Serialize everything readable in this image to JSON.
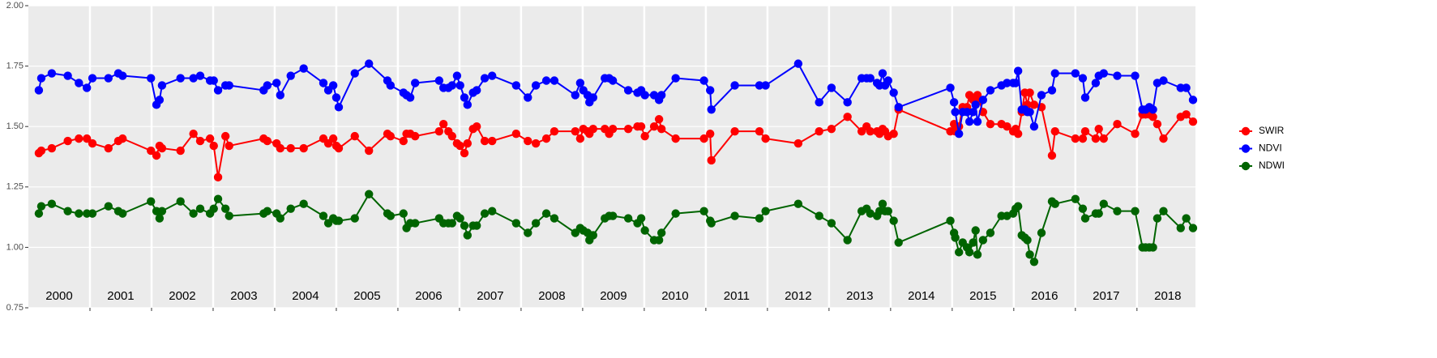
{
  "chart_data": {
    "type": "line",
    "x": [
      2000.17,
      2000.21,
      2000.38,
      2000.64,
      2000.82,
      2000.95,
      2001.04,
      2001.3,
      2001.46,
      2001.53,
      2001.99,
      2002.08,
      2002.13,
      2002.17,
      2002.47,
      2002.68,
      2002.79,
      2002.95,
      2003.01,
      2003.08,
      2003.2,
      2003.26,
      2003.82,
      2003.88,
      2004.03,
      2004.09,
      2004.26,
      2004.47,
      2004.79,
      2004.87,
      2004.95,
      2005.0,
      2005.04,
      2005.3,
      2005.53,
      2005.83,
      2005.88,
      2006.09,
      2006.14,
      2006.2,
      2006.28,
      2006.67,
      2006.74,
      2006.82,
      2006.88,
      2006.96,
      2007.01,
      2007.08,
      2007.13,
      2007.22,
      2007.28,
      2007.41,
      2007.53,
      2007.92,
      2008.11,
      2008.24,
      2008.41,
      2008.54,
      2008.88,
      2008.96,
      2009.01,
      2009.08,
      2009.11,
      2009.17,
      2009.36,
      2009.43,
      2009.49,
      2009.74,
      2009.89,
      2009.95,
      2010.01,
      2010.16,
      2010.24,
      2010.28,
      2010.51,
      2010.97,
      2011.07,
      2011.09,
      2011.47,
      2011.87,
      2011.97,
      2012.5,
      2012.84,
      2013.04,
      2013.3,
      2013.53,
      2013.61,
      2013.67,
      2013.78,
      2013.82,
      2013.87,
      2013.91,
      2013.96,
      2014.05,
      2014.13,
      2014.97,
      2015.03,
      2015.05,
      2015.11,
      2015.17,
      2015.24,
      2015.28,
      2015.34,
      2015.38,
      2015.41,
      2015.5,
      2015.62,
      2015.8,
      2015.89,
      2015.99,
      2016.03,
      2016.07,
      2016.13,
      2016.18,
      2016.22,
      2016.26,
      2016.33,
      2016.45,
      2016.62,
      2016.67,
      2017.0,
      2017.12,
      2017.16,
      2017.33,
      2017.38,
      2017.46,
      2017.68,
      2017.97,
      2018.09,
      2018.14,
      2018.2,
      2018.26,
      2018.33,
      2018.43,
      2018.71,
      2018.8,
      2018.91
    ],
    "series": [
      {
        "name": "SWIR",
        "color": "#ff0000",
        "values": [
          1.39,
          1.4,
          1.41,
          1.44,
          1.45,
          1.45,
          1.43,
          1.41,
          1.44,
          1.45,
          1.4,
          1.38,
          1.42,
          1.41,
          1.4,
          1.47,
          1.44,
          1.45,
          1.42,
          1.29,
          1.46,
          1.42,
          1.45,
          1.44,
          1.43,
          1.41,
          1.41,
          1.41,
          1.45,
          1.43,
          1.45,
          1.42,
          1.41,
          1.46,
          1.4,
          1.47,
          1.46,
          1.44,
          1.47,
          1.47,
          1.46,
          1.48,
          1.51,
          1.48,
          1.46,
          1.43,
          1.42,
          1.39,
          1.43,
          1.49,
          1.5,
          1.44,
          1.44,
          1.47,
          1.44,
          1.43,
          1.45,
          1.48,
          1.48,
          1.45,
          1.49,
          1.48,
          1.47,
          1.49,
          1.49,
          1.47,
          1.49,
          1.49,
          1.5,
          1.5,
          1.46,
          1.5,
          1.53,
          1.49,
          1.45,
          1.45,
          1.47,
          1.36,
          1.48,
          1.48,
          1.45,
          1.43,
          1.48,
          1.49,
          1.54,
          1.48,
          1.5,
          1.48,
          1.48,
          1.47,
          1.49,
          1.48,
          1.46,
          1.47,
          1.57,
          1.48,
          1.51,
          1.48,
          1.5,
          1.58,
          1.58,
          1.63,
          1.61,
          1.61,
          1.63,
          1.56,
          1.51,
          1.51,
          1.5,
          1.48,
          1.49,
          1.47,
          1.56,
          1.64,
          1.59,
          1.64,
          1.59,
          1.58,
          1.38,
          1.48,
          1.45,
          1.45,
          1.48,
          1.45,
          1.49,
          1.45,
          1.51,
          1.47,
          1.55,
          1.55,
          1.55,
          1.54,
          1.51,
          1.45,
          1.54,
          1.55,
          1.52
        ]
      },
      {
        "name": "NDVI",
        "color": "#0000ff",
        "values": [
          1.65,
          1.7,
          1.72,
          1.71,
          1.68,
          1.66,
          1.7,
          1.7,
          1.72,
          1.71,
          1.7,
          1.59,
          1.61,
          1.67,
          1.7,
          1.7,
          1.71,
          1.69,
          1.69,
          1.65,
          1.67,
          1.67,
          1.65,
          1.67,
          1.68,
          1.63,
          1.71,
          1.74,
          1.68,
          1.65,
          1.67,
          1.62,
          1.58,
          1.72,
          1.76,
          1.69,
          1.67,
          1.64,
          1.63,
          1.62,
          1.68,
          1.69,
          1.66,
          1.66,
          1.67,
          1.71,
          1.67,
          1.62,
          1.59,
          1.64,
          1.65,
          1.7,
          1.71,
          1.67,
          1.62,
          1.67,
          1.69,
          1.69,
          1.63,
          1.68,
          1.65,
          1.63,
          1.6,
          1.62,
          1.7,
          1.7,
          1.69,
          1.65,
          1.64,
          1.65,
          1.63,
          1.63,
          1.61,
          1.63,
          1.7,
          1.69,
          1.65,
          1.57,
          1.67,
          1.67,
          1.67,
          1.76,
          1.6,
          1.66,
          1.6,
          1.7,
          1.7,
          1.7,
          1.68,
          1.67,
          1.72,
          1.67,
          1.69,
          1.64,
          1.58,
          1.66,
          1.6,
          1.56,
          1.47,
          1.56,
          1.56,
          1.52,
          1.56,
          1.59,
          1.52,
          1.61,
          1.65,
          1.67,
          1.68,
          1.68,
          1.68,
          1.73,
          1.57,
          1.57,
          1.56,
          1.56,
          1.5,
          1.63,
          1.65,
          1.72,
          1.72,
          1.7,
          1.62,
          1.68,
          1.71,
          1.72,
          1.71,
          1.71,
          1.57,
          1.57,
          1.58,
          1.57,
          1.68,
          1.69,
          1.66,
          1.66,
          1.61
        ]
      },
      {
        "name": "NDWI",
        "color": "#006400",
        "values": [
          1.14,
          1.17,
          1.18,
          1.15,
          1.14,
          1.14,
          1.14,
          1.17,
          1.15,
          1.14,
          1.19,
          1.15,
          1.12,
          1.15,
          1.19,
          1.14,
          1.16,
          1.14,
          1.16,
          1.2,
          1.16,
          1.13,
          1.14,
          1.15,
          1.14,
          1.12,
          1.16,
          1.18,
          1.13,
          1.1,
          1.12,
          1.11,
          1.11,
          1.12,
          1.22,
          1.14,
          1.13,
          1.14,
          1.08,
          1.1,
          1.1,
          1.12,
          1.1,
          1.1,
          1.1,
          1.13,
          1.12,
          1.09,
          1.05,
          1.09,
          1.09,
          1.14,
          1.15,
          1.1,
          1.06,
          1.1,
          1.14,
          1.12,
          1.06,
          1.08,
          1.07,
          1.06,
          1.03,
          1.05,
          1.12,
          1.13,
          1.13,
          1.12,
          1.1,
          1.12,
          1.07,
          1.03,
          1.03,
          1.06,
          1.14,
          1.15,
          1.11,
          1.1,
          1.13,
          1.12,
          1.15,
          1.18,
          1.13,
          1.1,
          1.03,
          1.15,
          1.16,
          1.14,
          1.13,
          1.15,
          1.18,
          1.15,
          1.15,
          1.11,
          1.02,
          1.11,
          1.06,
          1.04,
          0.98,
          1.02,
          1.0,
          0.98,
          1.02,
          1.07,
          0.97,
          1.03,
          1.06,
          1.13,
          1.13,
          1.14,
          1.16,
          1.17,
          1.05,
          1.04,
          1.03,
          0.97,
          0.94,
          1.06,
          1.19,
          1.18,
          1.2,
          1.16,
          1.12,
          1.14,
          1.14,
          1.18,
          1.15,
          1.15,
          1.0,
          1.0,
          1.0,
          1.0,
          1.12,
          1.15,
          1.08,
          1.12,
          1.08
        ]
      }
    ],
    "xlim": [
      2000.0,
      2018.95
    ],
    "xticks": [
      2001,
      2002,
      2003,
      2004,
      2005,
      2006,
      2007,
      2008,
      2009,
      2010,
      2011,
      2012,
      2013,
      2014,
      2015,
      2016,
      2017,
      2018
    ],
    "year_labels": [
      {
        "value": 2000.5,
        "label": "2000"
      },
      {
        "value": 2001.5,
        "label": "2001"
      },
      {
        "value": 2002.5,
        "label": "2002"
      },
      {
        "value": 2003.5,
        "label": "2003"
      },
      {
        "value": 2004.5,
        "label": "2004"
      },
      {
        "value": 2005.5,
        "label": "2005"
      },
      {
        "value": 2006.5,
        "label": "2006"
      },
      {
        "value": 2007.5,
        "label": "2007"
      },
      {
        "value": 2008.5,
        "label": "2008"
      },
      {
        "value": 2009.5,
        "label": "2009"
      },
      {
        "value": 2010.5,
        "label": "2010"
      },
      {
        "value": 2011.5,
        "label": "2011"
      },
      {
        "value": 2012.5,
        "label": "2012"
      },
      {
        "value": 2013.5,
        "label": "2013"
      },
      {
        "value": 2014.5,
        "label": "2014"
      },
      {
        "value": 2015.5,
        "label": "2015"
      },
      {
        "value": 2016.5,
        "label": "2016"
      },
      {
        "value": 2017.5,
        "label": "2017"
      },
      {
        "value": 2018.5,
        "label": "2018"
      }
    ],
    "ylim": [
      0.75,
      2.0
    ],
    "yticks": [
      0.75,
      {
        "value": 1,
        "label": "1.00"
      },
      1.25,
      {
        "value": 1.5,
        "label": "1.50"
      },
      1.75,
      {
        "value": 2,
        "label": "2.00"
      }
    ],
    "grid": true,
    "legend": "right"
  }
}
